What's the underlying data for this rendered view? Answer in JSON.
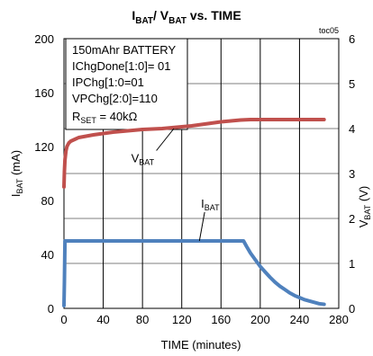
{
  "chart_data": {
    "type": "line",
    "title_main_1": "I",
    "title_sub_1": "BAT",
    "title_slash": "/ V",
    "title_sub_2": "BAT",
    "title_tail": " vs. TIME",
    "tag": "toc05",
    "xlabel": "TIME (minutes)",
    "ylabel_left_main": "I",
    "ylabel_left_sub": "BAT",
    "ylabel_left_unit": " (mA)",
    "ylabel_right_main": "V",
    "ylabel_right_sub": "BAT",
    "ylabel_right_unit": " (V)",
    "xlim": [
      0,
      280
    ],
    "ylim_left": [
      0,
      200
    ],
    "ylim_right": [
      0,
      6
    ],
    "xticks": [
      "0",
      "40",
      "80",
      "120",
      "160",
      "200",
      "240",
      "280"
    ],
    "yticks_left": [
      "0",
      "40",
      "80",
      "120",
      "160",
      "200"
    ],
    "yticks_right": [
      "0",
      "1",
      "2",
      "3",
      "4",
      "5",
      "6"
    ],
    "grid": true,
    "annotation_box": [
      "150mAhr BATTERY",
      "IChgDone[1:0]= 01",
      "IPChg[1:0=01",
      "VPChg[2:0]=110"
    ],
    "rset_main": "R",
    "rset_sub": "SET",
    "rset_value": " = 40kΩ",
    "series": [
      {
        "name_main": "V",
        "name_sub": "BAT",
        "axis": "right",
        "color": "#c0504d",
        "x": [
          0,
          0.5,
          1,
          2,
          3,
          5,
          7,
          10,
          12,
          15,
          20,
          25,
          30,
          40,
          50,
          60,
          70,
          80,
          90,
          100,
          110,
          120,
          130,
          140,
          150,
          160,
          170,
          180,
          190,
          200,
          220,
          240,
          265
        ],
        "y": [
          2.7,
          3.05,
          3.3,
          3.5,
          3.6,
          3.68,
          3.72,
          3.75,
          3.77,
          3.8,
          3.82,
          3.84,
          3.86,
          3.89,
          3.92,
          3.94,
          3.96,
          3.98,
          3.99,
          4.0,
          4.02,
          4.04,
          4.06,
          4.09,
          4.12,
          4.15,
          4.17,
          4.19,
          4.2,
          4.2,
          4.2,
          4.2,
          4.2
        ]
      },
      {
        "name_main": "I",
        "name_sub": "BAT",
        "axis": "left",
        "color": "#4f81bd",
        "x": [
          0,
          0.5,
          1,
          2,
          183,
          186,
          190,
          195,
          200,
          205,
          210,
          215,
          220,
          225,
          230,
          235,
          240,
          245,
          250,
          255,
          260,
          265
        ],
        "y": [
          2,
          20,
          50,
          50,
          50,
          46,
          41,
          36,
          31,
          27,
          23,
          19.5,
          16.5,
          14,
          11.5,
          9.5,
          8,
          6.5,
          5.5,
          4.5,
          3.5,
          3
        ]
      }
    ],
    "label_vbat_at": [
      85,
      3.35
    ],
    "label_vbat_arrow_to": [
      112,
      4.0
    ],
    "label_ibat_at": [
      147,
      78
    ],
    "label_ibat_arrow_to": [
      138,
      50
    ]
  }
}
